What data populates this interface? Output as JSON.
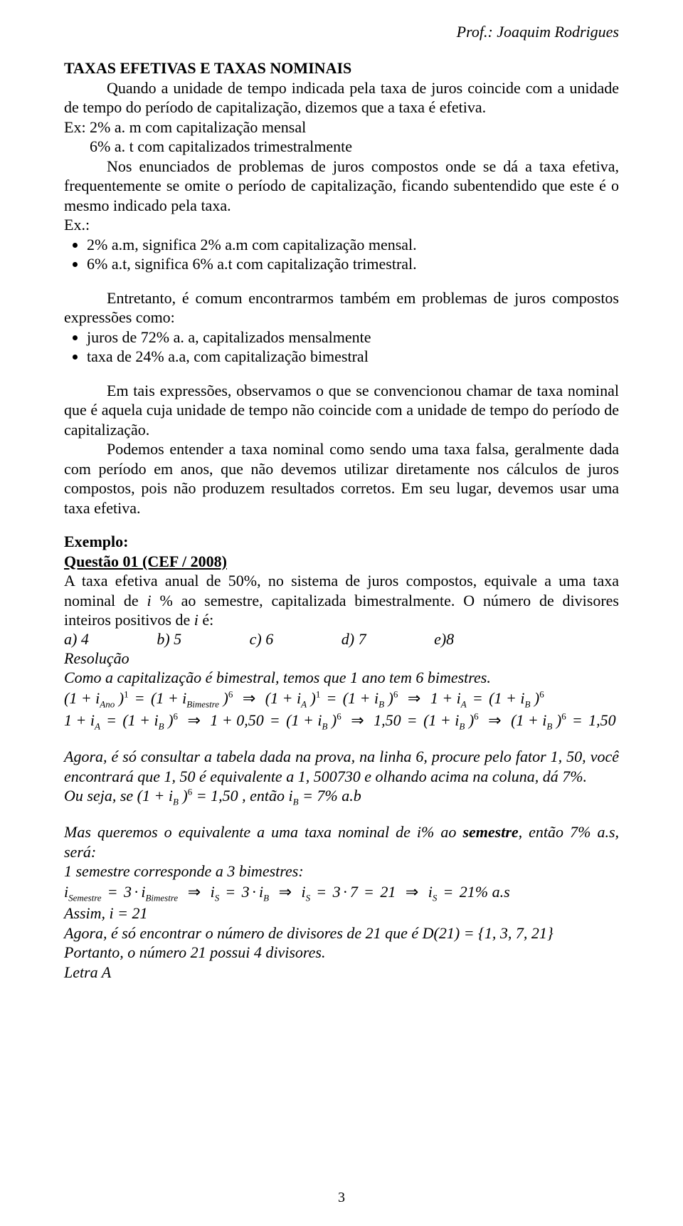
{
  "header": {
    "prof": "Prof.: Joaquim Rodrigues"
  },
  "title": "TAXAS EFETIVAS E TAXAS NOMINAIS",
  "p1": "Quando a unidade de tempo indicada pela taxa de juros coincide com a unidade de tempo do período de capitalização, dizemos que a taxa é efetiva.",
  "p2": "Ex: 2% a. m com capitalização mensal",
  "p3": "6% a. t com capitalizados trimestralmente",
  "p4": "Nos enunciados de problemas de juros compostos onde se dá a taxa efetiva, frequentemente se omite o período de capitalização, ficando subentendido que este é o mesmo indicado pela taxa.",
  "exlabel": "Ex.:",
  "b1": "2% a.m, significa 2% a.m com capitalização mensal.",
  "b2": "6% a.t, significa 6% a.t com capitalização trimestral.",
  "p5a": "Entretanto, é comum encontrarmos também em problemas de juros compostos expressões como:",
  "b3": "juros de 72% a. a, capitalizados mensalmente",
  "b4": "taxa de 24% a.a, com capitalização bimestral",
  "p6": "Em tais expressões, observamos o que se convencionou chamar de taxa nominal que é aquela cuja unidade de tempo não coincide com a unidade de tempo do período de capitalização.",
  "p7": "Podemos entender a taxa nominal como sendo uma taxa falsa, geralmente dada com período em anos, que não devemos utilizar diretamente nos cálculos de juros compostos, pois não produzem resultados corretos. Em seu lugar, devemos usar uma taxa efetiva.",
  "exemplo": "Exemplo:",
  "questao": "Questão 01 (CEF / 2008)",
  "q1a": "A taxa efetiva anual de 50%, no sistema de juros compostos, equivale a uma taxa nominal de ",
  "q1b": " % ao semestre, capitalizada bimestralmente. O número de divisores inteiros positivos de ",
  "q1c": " é:",
  "i": "i",
  "opt_a": "a) 4",
  "opt_b": "b) 5",
  "opt_c": "c) 6",
  "opt_d": "d) 7",
  "opt_e": "e)8",
  "resol": "Resolução",
  "r1": "Como a capitalização é bimestral, temos que 1 ano tem 6 bimestres.",
  "r2": "Agora, é só consultar a tabela dada na prova, na linha 6, procure pelo fator 1, 50, você encontrará que 1, 50 é equivalente a 1, 500730 e olhando acima na coluna, dá 7%.",
  "r3a": "Ou seja, se ",
  "r3b": ", então ",
  "r3c": " a.b",
  "r4a": "Mas queremos o equivalente a uma taxa nominal de i% ao ",
  "r4b": "semestre",
  "r4c": ", então 7% a.s, será:",
  "r5": "1 semestre corresponde a 3 bimestres:",
  "r6": "Assim, i  = 21",
  "r7": "Agora, é só encontrar o número de divisores de 21 que é D(21) = {1, 3, 7, 21}",
  "r8": "Portanto, o número 21 possui 4 divisores.",
  "r9": "Letra A",
  "math": {
    "ia_sub": "A",
    "ib_sub": "B",
    "ano_sub": "Ano",
    "bim_sub": "Bimestre",
    "sem_sub": "Semestre",
    "s_sub": "S",
    "eq_ib7": " = 7%",
    "v150": "1,50",
    "v050": "0,50"
  },
  "pagenum": "3"
}
